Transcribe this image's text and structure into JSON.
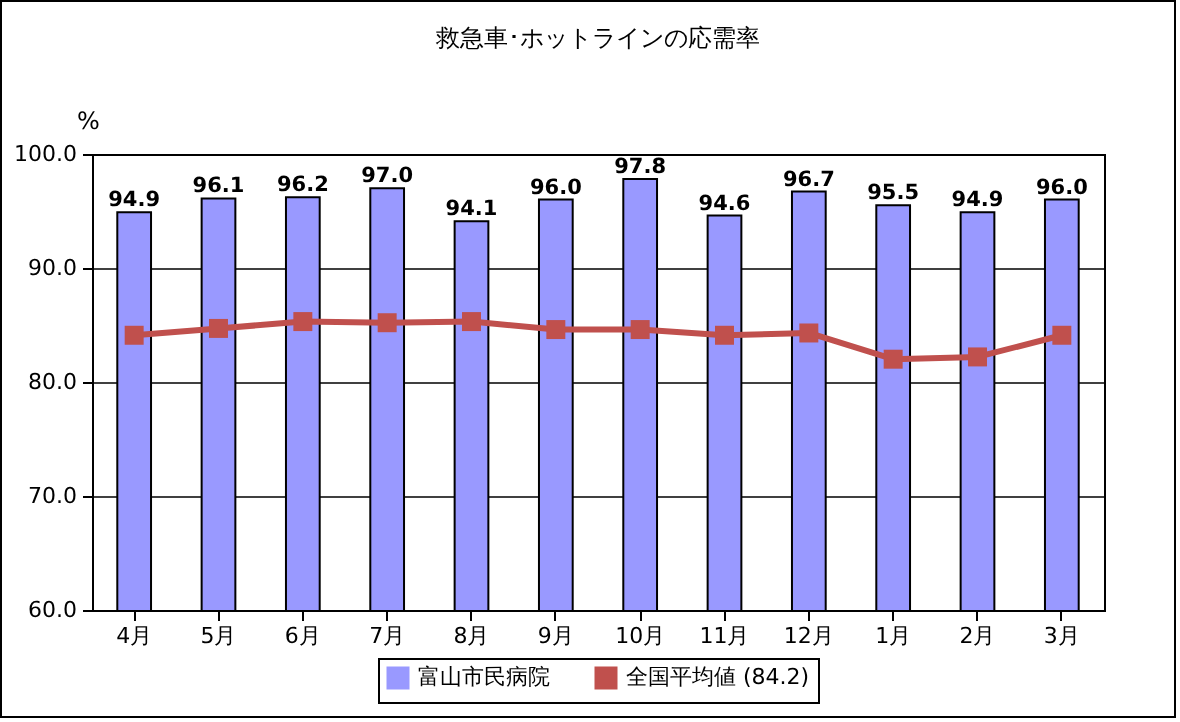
{
  "chart_data": {
    "type": "bar",
    "title": "救急車･ホットラインの応需率",
    "ylabel": "%",
    "categories": [
      "4月",
      "5月",
      "6月",
      "7月",
      "8月",
      "9月",
      "10月",
      "11月",
      "12月",
      "1月",
      "2月",
      "3月"
    ],
    "series": [
      {
        "name": "富山市民病院",
        "color": "#9999ff",
        "values": [
          94.9,
          96.1,
          96.2,
          97.0,
          94.1,
          96.0,
          97.8,
          94.6,
          96.7,
          95.5,
          94.9,
          96.0
        ],
        "value_labels": [
          "94.9",
          "96.1",
          "96.2",
          "97.0",
          "94.1",
          "96.0",
          "97.8",
          "94.6",
          "96.7",
          "95.5",
          "94.9",
          "96.0"
        ]
      },
      {
        "name": "全国平均値 (84.2)",
        "type": "line",
        "color": "#c0504d",
        "values": [
          84.1,
          84.7,
          85.3,
          85.2,
          85.3,
          84.6,
          84.6,
          84.1,
          84.3,
          82.0,
          82.2,
          84.1
        ]
      }
    ],
    "ylim": [
      60,
      100
    ],
    "yticks": [
      {
        "value": 60,
        "label": "60.0"
      },
      {
        "value": 70,
        "label": "70.0"
      },
      {
        "value": 80,
        "label": "80.0"
      },
      {
        "value": 90,
        "label": "90.0"
      },
      {
        "value": 100,
        "label": "100.0"
      }
    ],
    "grid": "y",
    "legend": "bottom",
    "marker": "square",
    "line_style": "solid"
  }
}
